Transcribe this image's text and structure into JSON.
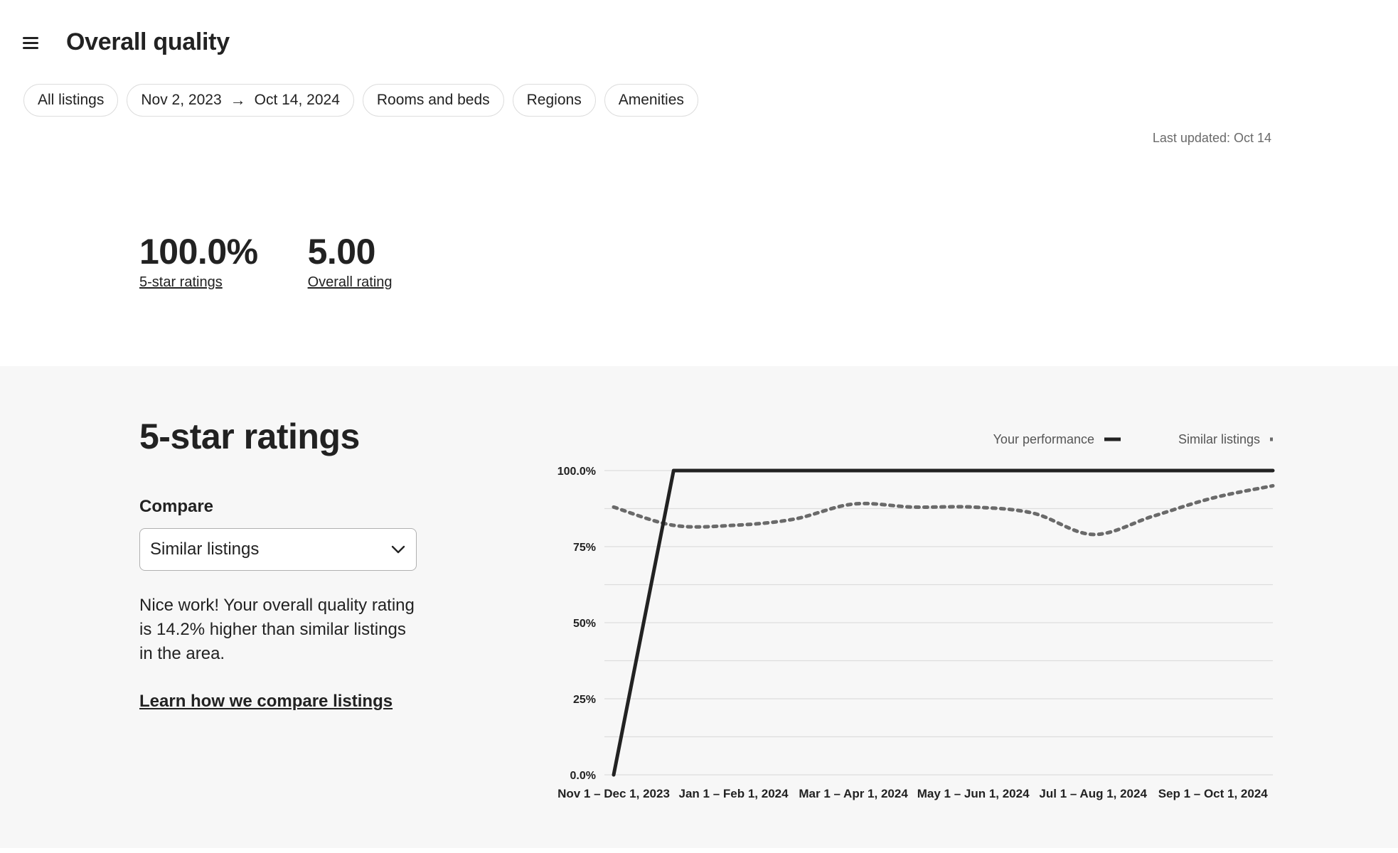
{
  "header": {
    "menu_icon": "hamburger-menu-icon",
    "title": "Overall quality"
  },
  "filters": {
    "all_listings": "All listings",
    "date_start": "Nov 2, 2023",
    "date_arrow_icon": "arrow-right-icon",
    "date_end": "Oct 14, 2024",
    "rooms_and_beds": "Rooms and beds",
    "regions": "Regions",
    "amenities": "Amenities"
  },
  "last_updated": "Last updated: Oct 14",
  "kpis": [
    {
      "value": "100.0%",
      "label": "5-star ratings"
    },
    {
      "value": "5.00",
      "label": "Overall rating"
    }
  ],
  "section": {
    "title": "5-star ratings",
    "compare_label": "Compare",
    "compare_selected": "Similar listings",
    "compare_chevron_icon": "chevron-down-icon",
    "description": "Nice work! Your overall quality rating is 14.2% higher than similar listings in the area.",
    "learn_link": "Learn how we compare listings"
  },
  "chart_data": {
    "type": "line",
    "ylim": [
      0,
      100
    ],
    "y_ticks": [
      "100.0%",
      "75%",
      "50%",
      "25%",
      "0.0%"
    ],
    "x_tick_labels": [
      "Nov 1 – Dec 1, 2023",
      "Jan 1 – Feb 1, 2024",
      "Mar 1 – Apr 1, 2024",
      "May 1 – Jun 1, 2024",
      "Jul 1 – Aug 1, 2024",
      "Sep 1 – Oct 1, 2024"
    ],
    "x": [
      "Nov 2023",
      "Dec 2023",
      "Jan 2024",
      "Feb 2024",
      "Mar 2024",
      "Apr 2024",
      "May 2024",
      "Jun 2024",
      "Jul 2024",
      "Aug 2024",
      "Sep 2024",
      "Oct 2024"
    ],
    "legend_placement": "top-right",
    "series": [
      {
        "name": "Your performance",
        "style": "solid",
        "color": "#222222",
        "values": [
          0,
          100,
          100,
          100,
          100,
          100,
          100,
          100,
          100,
          100,
          100,
          100
        ]
      },
      {
        "name": "Similar listings",
        "style": "dotted",
        "color": "#6a6a6a",
        "values": [
          88,
          82,
          82,
          84,
          89,
          88,
          88,
          86,
          79,
          85,
          91,
          95
        ]
      }
    ]
  }
}
